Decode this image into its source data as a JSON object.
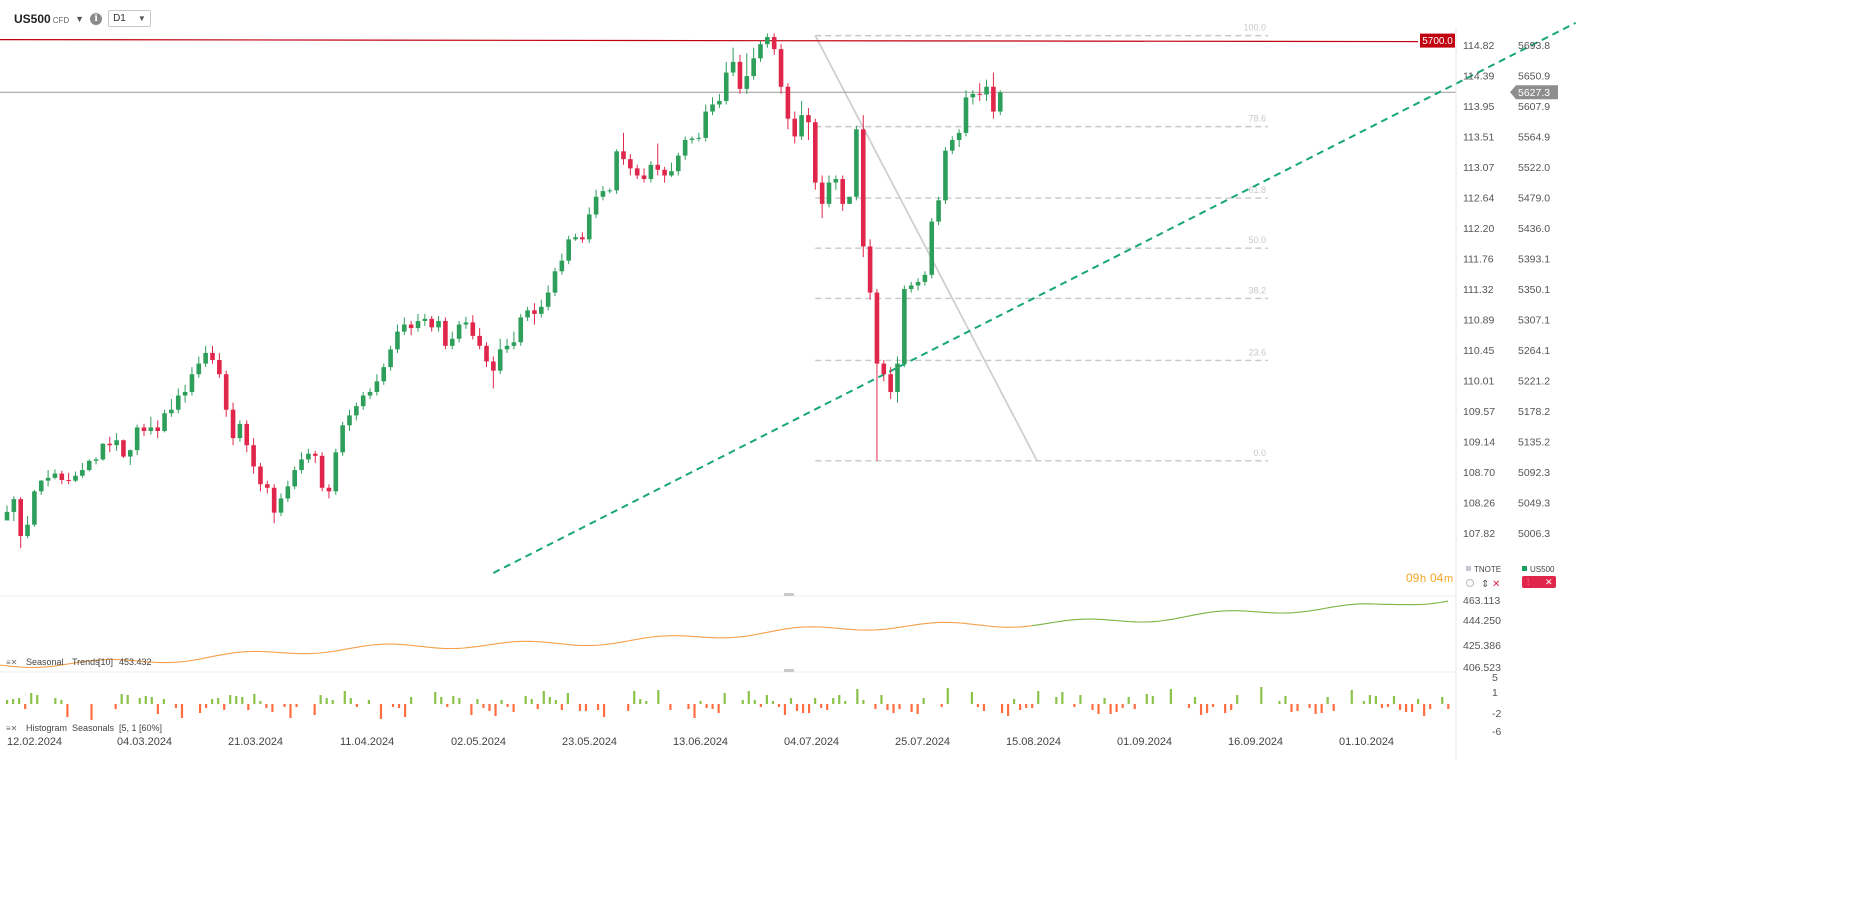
{
  "header": {
    "symbol": "US500",
    "symbol_type": "CFD",
    "timeframe": "D1"
  },
  "countdown": {
    "hours": "09",
    "h_unit": "h",
    "minutes": "04",
    "m_unit": "m"
  },
  "legend": {
    "tnote": "TNOTE",
    "us500": "US500",
    "tnote_color": "#c8c8d4",
    "us500_color": "#1a9c5c"
  },
  "colors": {
    "up": "#2e9e5b",
    "down": "#e0264a",
    "trend": "#17a67a",
    "resistance": "#c0000f",
    "fib": "#c8c8c8"
  },
  "indicators": {
    "seasonal": {
      "label": "Seasonal",
      "name": "Trends",
      "params": "[10]",
      "value": "453.432",
      "color_past": "#f5a04a",
      "color_future": "#7cb342"
    },
    "histogram": {
      "label": "Histogram",
      "name": "Seasonals",
      "params": "[5, 1 [60%]"
    }
  },
  "chart_data": {
    "type": "candlestick",
    "symbol": "US500",
    "price_axis": [
      "5693.8",
      "5650.9",
      "5607.9",
      "5564.9",
      "5522.0",
      "5479.0",
      "5436.0",
      "5393.1",
      "5350.1",
      "5307.1",
      "5264.1",
      "5221.2",
      "5178.2",
      "5135.2",
      "5092.3",
      "5049.3",
      "5006.3"
    ],
    "second_axis": [
      "114.82",
      "114.39",
      "113.95",
      "113.51",
      "113.07",
      "112.64",
      "112.20",
      "111.76",
      "111.32",
      "110.89",
      "110.45",
      "110.01",
      "109.57",
      "109.14",
      "108.70",
      "108.26",
      "107.82"
    ],
    "y_range": [
      4950,
      5725
    ],
    "x_labels": [
      "12.02.2024",
      "04.03.2024",
      "21.03.2024",
      "11.04.2024",
      "02.05.2024",
      "23.05.2024",
      "13.06.2024",
      "04.07.2024",
      "25.07.2024",
      "15.08.2024",
      "01.09.2024",
      "16.09.2024",
      "01.10.2024"
    ],
    "current_price": "5627.3",
    "resistance": {
      "label": "5700.0",
      "value": 5700.0
    },
    "fibonacci": {
      "high": 5707,
      "low": 5108,
      "levels": [
        {
          "label": "100.0",
          "ratio": 1.0
        },
        {
          "label": "78.6",
          "ratio": 0.786
        },
        {
          "label": "61.8",
          "ratio": 0.618
        },
        {
          "label": "50.0",
          "ratio": 0.5
        },
        {
          "label": "38.2",
          "ratio": 0.382
        },
        {
          "label": "23.6",
          "ratio": 0.236
        },
        {
          "label": "0.0",
          "ratio": 0.0
        }
      ]
    },
    "trendline": {
      "p1": {
        "bar": 71,
        "price": 4950
      },
      "p2": {
        "bar": 229,
        "price": 5725
      }
    },
    "candles": [
      [
        5024,
        5036,
        5026,
        5045
      ],
      [
        5036,
        5054,
        5023,
        5058
      ],
      [
        5054,
        5002,
        4985,
        5057
      ],
      [
        5002,
        5018,
        4999,
        5030
      ],
      [
        5018,
        5065,
        5015,
        5067
      ],
      [
        5065,
        5080,
        5060,
        5081
      ],
      [
        5080,
        5084,
        5072,
        5095
      ],
      [
        5084,
        5090,
        5082,
        5096
      ],
      [
        5090,
        5081,
        5075,
        5094
      ],
      [
        5081,
        5080,
        5075,
        5091
      ],
      [
        5080,
        5087,
        5078,
        5093
      ],
      [
        5087,
        5095,
        5084,
        5105
      ],
      [
        5095,
        5108,
        5093,
        5110
      ],
      [
        5108,
        5110,
        5103,
        5113
      ],
      [
        5110,
        5132,
        5108,
        5133
      ],
      [
        5132,
        5130,
        5120,
        5142
      ],
      [
        5130,
        5137,
        5122,
        5147
      ],
      [
        5137,
        5114,
        5112,
        5138
      ],
      [
        5114,
        5123,
        5102,
        5124
      ],
      [
        5123,
        5155,
        5116,
        5159
      ],
      [
        5155,
        5150,
        5143,
        5160
      ],
      [
        5150,
        5155,
        5145,
        5170
      ],
      [
        5155,
        5150,
        5140,
        5165
      ],
      [
        5150,
        5175,
        5148,
        5180
      ],
      [
        5175,
        5180,
        5170,
        5195
      ],
      [
        5180,
        5200,
        5175,
        5210
      ],
      [
        5200,
        5205,
        5190,
        5215
      ],
      [
        5205,
        5230,
        5200,
        5240
      ],
      [
        5230,
        5245,
        5225,
        5255
      ],
      [
        5245,
        5260,
        5240,
        5270
      ],
      [
        5260,
        5250,
        5245,
        5270
      ],
      [
        5250,
        5230,
        5225,
        5260
      ],
      [
        5230,
        5180,
        5170,
        5235
      ],
      [
        5180,
        5140,
        5130,
        5190
      ],
      [
        5140,
        5160,
        5135,
        5165
      ],
      [
        5160,
        5130,
        5120,
        5165
      ],
      [
        5130,
        5100,
        5090,
        5140
      ],
      [
        5100,
        5075,
        5065,
        5105
      ],
      [
        5075,
        5070,
        5062,
        5080
      ],
      [
        5070,
        5035,
        5020,
        5075
      ],
      [
        5035,
        5055,
        5030,
        5062
      ],
      [
        5055,
        5072,
        5050,
        5080
      ],
      [
        5072,
        5095,
        5068,
        5100
      ],
      [
        5095,
        5110,
        5090,
        5120
      ],
      [
        5110,
        5118,
        5105,
        5125
      ],
      [
        5118,
        5115,
        5105,
        5122
      ],
      [
        5115,
        5070,
        5065,
        5120
      ],
      [
        5070,
        5065,
        5055,
        5075
      ],
      [
        5065,
        5120,
        5060,
        5125
      ],
      [
        5120,
        5158,
        5115,
        5163
      ],
      [
        5158,
        5172,
        5150,
        5180
      ],
      [
        5172,
        5185,
        5165,
        5190
      ],
      [
        5185,
        5200,
        5180,
        5205
      ],
      [
        5200,
        5205,
        5195,
        5210
      ],
      [
        5205,
        5220,
        5200,
        5230
      ],
      [
        5220,
        5240,
        5215,
        5245
      ],
      [
        5240,
        5265,
        5235,
        5270
      ],
      [
        5265,
        5290,
        5260,
        5300
      ],
      [
        5290,
        5300,
        5285,
        5310
      ],
      [
        5300,
        5295,
        5285,
        5305
      ],
      [
        5295,
        5305,
        5290,
        5315
      ],
      [
        5305,
        5308,
        5298,
        5315
      ],
      [
        5308,
        5296,
        5290,
        5312
      ],
      [
        5296,
        5305,
        5290,
        5312
      ],
      [
        5305,
        5270,
        5265,
        5310
      ],
      [
        5270,
        5280,
        5265,
        5290
      ],
      [
        5280,
        5300,
        5275,
        5305
      ],
      [
        5300,
        5303,
        5294,
        5311
      ],
      [
        5303,
        5284,
        5279,
        5313
      ],
      [
        5284,
        5270,
        5265,
        5295
      ],
      [
        5270,
        5248,
        5240,
        5275
      ],
      [
        5248,
        5235,
        5210,
        5255
      ],
      [
        5235,
        5265,
        5230,
        5280
      ],
      [
        5265,
        5270,
        5260,
        5280
      ],
      [
        5270,
        5275,
        5265,
        5290
      ],
      [
        5275,
        5310,
        5270,
        5315
      ],
      [
        5310,
        5320,
        5305,
        5325
      ],
      [
        5320,
        5315,
        5300,
        5330
      ],
      [
        5315,
        5325,
        5310,
        5335
      ],
      [
        5325,
        5345,
        5320,
        5355
      ],
      [
        5345,
        5375,
        5340,
        5380
      ],
      [
        5375,
        5390,
        5370,
        5400
      ],
      [
        5390,
        5420,
        5385,
        5425
      ],
      [
        5420,
        5423,
        5418,
        5428
      ],
      [
        5423,
        5420,
        5415,
        5430
      ],
      [
        5420,
        5455,
        5415,
        5465
      ],
      [
        5455,
        5480,
        5450,
        5490
      ],
      [
        5480,
        5488,
        5475,
        5495
      ],
      [
        5488,
        5489,
        5485,
        5492
      ],
      [
        5489,
        5544,
        5484,
        5547
      ],
      [
        5544,
        5533,
        5525,
        5570
      ],
      [
        5533,
        5520,
        5510,
        5540
      ],
      [
        5520,
        5510,
        5505,
        5525
      ],
      [
        5510,
        5505,
        5500,
        5520
      ],
      [
        5505,
        5525,
        5500,
        5530
      ],
      [
        5525,
        5518,
        5510,
        5555
      ],
      [
        5518,
        5510,
        5500,
        5522
      ],
      [
        5510,
        5516,
        5508,
        5528
      ],
      [
        5516,
        5538,
        5510,
        5542
      ],
      [
        5538,
        5560,
        5532,
        5565
      ],
      [
        5560,
        5562,
        5555,
        5565
      ],
      [
        5562,
        5563,
        5558,
        5570
      ],
      [
        5563,
        5600,
        5558,
        5610
      ],
      [
        5600,
        5610,
        5595,
        5620
      ],
      [
        5610,
        5615,
        5605,
        5625
      ],
      [
        5615,
        5655,
        5610,
        5670
      ],
      [
        5655,
        5670,
        5650,
        5690
      ],
      [
        5670,
        5632,
        5625,
        5680
      ],
      [
        5632,
        5650,
        5625,
        5682
      ],
      [
        5650,
        5675,
        5645,
        5690
      ],
      [
        5675,
        5695,
        5670,
        5700
      ],
      [
        5695,
        5705,
        5690,
        5710
      ],
      [
        5705,
        5688,
        5680,
        5710
      ],
      [
        5688,
        5635,
        5625,
        5695
      ],
      [
        5635,
        5590,
        5575,
        5640
      ],
      [
        5590,
        5565,
        5555,
        5600
      ],
      [
        5565,
        5595,
        5560,
        5615
      ],
      [
        5595,
        5585,
        5560,
        5605
      ],
      [
        5585,
        5500,
        5490,
        5590
      ],
      [
        5500,
        5470,
        5450,
        5510
      ],
      [
        5470,
        5500,
        5465,
        5510
      ],
      [
        5500,
        5505,
        5490,
        5510
      ],
      [
        5505,
        5470,
        5460,
        5510
      ],
      [
        5470,
        5480,
        5470,
        5475
      ],
      [
        5480,
        5575,
        5475,
        5580
      ],
      [
        5575,
        5410,
        5395,
        5595
      ],
      [
        5410,
        5345,
        5335,
        5420
      ],
      [
        5345,
        5245,
        5108,
        5350
      ],
      [
        5245,
        5230,
        5220,
        5250
      ],
      [
        5230,
        5205,
        5195,
        5240
      ],
      [
        5205,
        5245,
        5190,
        5255
      ],
      [
        5245,
        5350,
        5240,
        5355
      ],
      [
        5350,
        5355,
        5345,
        5360
      ],
      [
        5355,
        5360,
        5348,
        5365
      ],
      [
        5360,
        5370,
        5355,
        5375
      ],
      [
        5370,
        5445,
        5365,
        5450
      ],
      [
        5445,
        5475,
        5440,
        5480
      ],
      [
        5475,
        5545,
        5470,
        5550
      ],
      [
        5545,
        5560,
        5540,
        5565
      ],
      [
        5560,
        5570,
        5550,
        5575
      ],
      [
        5570,
        5620,
        5565,
        5630
      ],
      [
        5620,
        5625,
        5610,
        5630
      ],
      [
        5625,
        5624,
        5615,
        5640
      ],
      [
        5624,
        5635,
        5615,
        5645
      ],
      [
        5635,
        5600,
        5590,
        5655
      ],
      [
        5600,
        5627,
        5595,
        5630
      ]
    ],
    "seasonal_trend": {
      "axis": [
        "463.113",
        "444.250",
        "425.386",
        "406.523"
      ]
    },
    "histogram": {
      "axis": [
        "5",
        "1",
        "-2",
        "-6"
      ]
    }
  }
}
